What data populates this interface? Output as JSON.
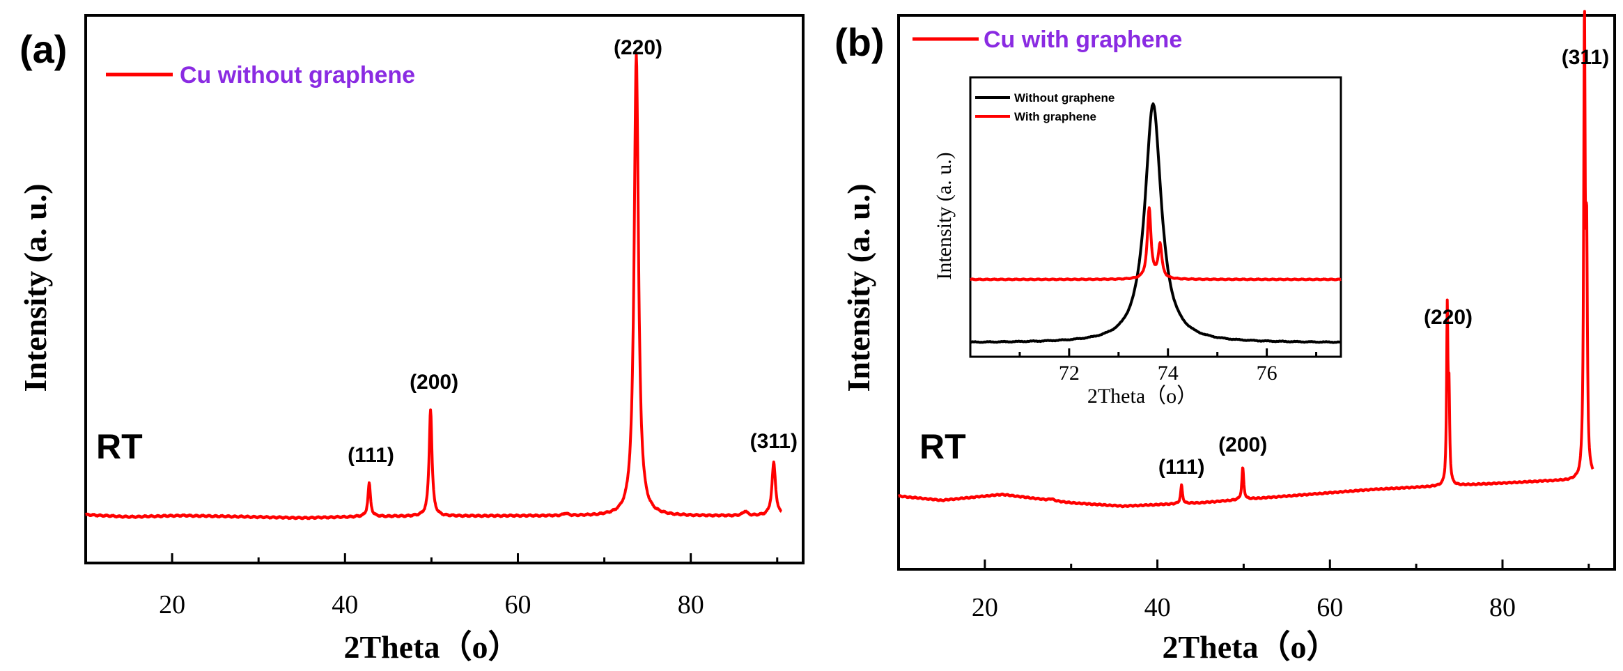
{
  "chart_data": [
    {
      "type": "line",
      "panel_label": "(a)",
      "xlabel": "2Theta（o）",
      "ylabel": "Intensity (a. u.)",
      "xlim": [
        10,
        93
      ],
      "xticks": [
        "20",
        "40",
        "60",
        "80"
      ],
      "yticks": [],
      "condition_label": "RT",
      "series": [
        {
          "name": "Cu without graphene",
          "color": "#ff0000",
          "baseline": [
            [
              10,
              4.0
            ],
            [
              15,
              2.0
            ],
            [
              21,
              3.2
            ],
            [
              28,
              2.2
            ],
            [
              35,
              1.0
            ],
            [
              42,
              2.2
            ],
            [
              50,
              2.6
            ],
            [
              60,
              2.9
            ],
            [
              70,
              2.8
            ],
            [
              80,
              2.8
            ],
            [
              90,
              3.0
            ]
          ],
          "peaks": [
            {
              "x": 42.8,
              "h": 30,
              "w": 0.18
            },
            {
              "x": 49.9,
              "h": 97,
              "w": 0.2
            },
            {
              "x": 65.5,
              "h": 2,
              "w": 0.3
            },
            {
              "x": 73.7,
              "h": 420,
              "w": 0.3
            },
            {
              "x": 86.3,
              "h": 4,
              "w": 0.3
            },
            {
              "x": 89.6,
              "h": 48,
              "w": 0.25
            }
          ]
        }
      ],
      "annotations": [
        {
          "text": "(111)",
          "x": 43.0
        },
        {
          "text": "(200)",
          "x": 50.3
        },
        {
          "text": "(220)",
          "x": 73.9
        },
        {
          "text": "(311)",
          "x": 89.6
        }
      ]
    },
    {
      "type": "line",
      "panel_label": "(b)",
      "xlabel": "2Theta（o）",
      "ylabel": "Intensity (a. u.)",
      "xlim": [
        10,
        93
      ],
      "xticks": [
        "20",
        "40",
        "60",
        "80"
      ],
      "yticks": [],
      "condition_label": "RT",
      "series": [
        {
          "name": "Cu with graphene",
          "color": "#ff0000",
          "baseline": [
            [
              10,
              40
            ],
            [
              15,
              35
            ],
            [
              22,
              42
            ],
            [
              30,
              32
            ],
            [
              36,
              28
            ],
            [
              45,
              32
            ],
            [
              55,
              40
            ],
            [
              65,
              48
            ],
            [
              75,
              53
            ],
            [
              85,
              58
            ],
            [
              89.5,
              59
            ],
            [
              90.5,
              62
            ]
          ],
          "peaks": [
            {
              "x": 27.7,
              "h": 2,
              "w": 0.3
            },
            {
              "x": 42.8,
              "h": 22,
              "w": 0.13
            },
            {
              "x": 49.9,
              "h": 38,
              "w": 0.13
            },
            {
              "x": 73.6,
              "h": 205,
              "w": 0.09
            },
            {
              "x": 73.8,
              "h": 100,
              "w": 0.09
            },
            {
              "x": 89.5,
              "h": 540,
              "w": 0.1
            },
            {
              "x": 89.75,
              "h": 260,
              "w": 0.1
            }
          ]
        }
      ],
      "annotations": [
        {
          "text": "(111)",
          "x": 42.8
        },
        {
          "text": "(200)",
          "x": 49.9
        },
        {
          "text": "(220)",
          "x": 73.7
        },
        {
          "text": "(311)",
          "x": 89.6
        }
      ],
      "inset": {
        "xlabel": "2Theta（o）",
        "ylabel": "Intensity (a. u.)",
        "xlim": [
          70.0,
          77.5
        ],
        "xticks": [
          "72",
          "74",
          "76"
        ],
        "series": [
          {
            "name": "Without graphene",
            "color": "#000000",
            "baseline": 0,
            "peaks": [
              {
                "x": 73.7,
                "h": 245,
                "w": 0.2
              }
            ]
          },
          {
            "name": "With graphene",
            "color": "#ff0000",
            "baseline": 65,
            "peaks": [
              {
                "x": 73.62,
                "h": 72,
                "w": 0.045
              },
              {
                "x": 73.84,
                "h": 35,
                "w": 0.045
              }
            ]
          }
        ]
      }
    }
  ]
}
